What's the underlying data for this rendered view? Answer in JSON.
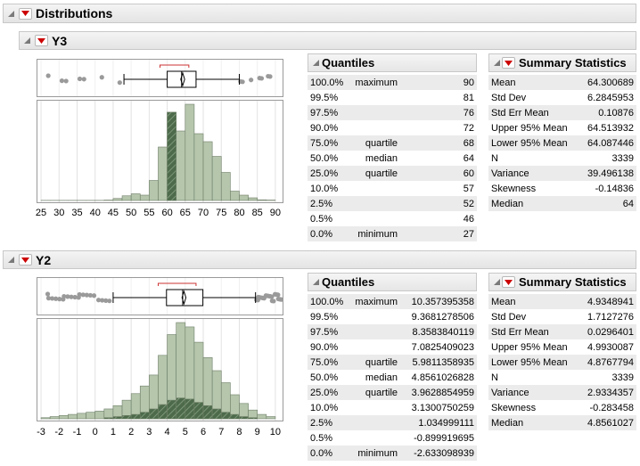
{
  "report": {
    "title": "Distributions"
  },
  "sections": [
    {
      "id": "y3",
      "title": "Y3",
      "quantiles_title": "Quantiles",
      "summary_title": "Summary Statistics",
      "quantiles": [
        {
          "pct": "100.0%",
          "label": "maximum",
          "value": "90"
        },
        {
          "pct": "99.5%",
          "label": "",
          "value": "81"
        },
        {
          "pct": "97.5%",
          "label": "",
          "value": "76"
        },
        {
          "pct": "90.0%",
          "label": "",
          "value": "72"
        },
        {
          "pct": "75.0%",
          "label": "quartile",
          "value": "68"
        },
        {
          "pct": "50.0%",
          "label": "median",
          "value": "64"
        },
        {
          "pct": "25.0%",
          "label": "quartile",
          "value": "60"
        },
        {
          "pct": "10.0%",
          "label": "",
          "value": "57"
        },
        {
          "pct": "2.5%",
          "label": "",
          "value": "52"
        },
        {
          "pct": "0.5%",
          "label": "",
          "value": "46"
        },
        {
          "pct": "0.0%",
          "label": "minimum",
          "value": "27"
        }
      ],
      "summary": [
        {
          "label": "Mean",
          "value": "64.300689"
        },
        {
          "label": "Std Dev",
          "value": "6.2845953"
        },
        {
          "label": "Std Err Mean",
          "value": "0.10876"
        },
        {
          "label": "Upper 95% Mean",
          "value": "64.513932"
        },
        {
          "label": "Lower 95% Mean",
          "value": "64.087446"
        },
        {
          "label": "N",
          "value": "3339"
        },
        {
          "label": "Variance",
          "value": "39.496138"
        },
        {
          "label": "Skewness",
          "value": "-0.14836"
        },
        {
          "label": "Median",
          "value": "64"
        }
      ],
      "axis_ticks": [
        "25",
        "30",
        "35",
        "40",
        "45",
        "50",
        "55",
        "60",
        "65",
        "70",
        "75",
        "80",
        "85",
        "90"
      ]
    },
    {
      "id": "y2",
      "title": "Y2",
      "quantiles_title": "Quantiles",
      "summary_title": "Summary Statistics",
      "quantiles": [
        {
          "pct": "100.0%",
          "label": "maximum",
          "value": "10.357395358"
        },
        {
          "pct": "99.5%",
          "label": "",
          "value": "9.3681278506"
        },
        {
          "pct": "97.5%",
          "label": "",
          "value": "8.3583840119"
        },
        {
          "pct": "90.0%",
          "label": "",
          "value": "7.0825409023"
        },
        {
          "pct": "75.0%",
          "label": "quartile",
          "value": "5.9811358935"
        },
        {
          "pct": "50.0%",
          "label": "median",
          "value": "4.8561026828"
        },
        {
          "pct": "25.0%",
          "label": "quartile",
          "value": "3.9628854959"
        },
        {
          "pct": "10.0%",
          "label": "",
          "value": "3.1300750259"
        },
        {
          "pct": "2.5%",
          "label": "",
          "value": "1.034999111"
        },
        {
          "pct": "0.5%",
          "label": "",
          "value": "-0.899919695"
        },
        {
          "pct": "0.0%",
          "label": "minimum",
          "value": "-2.633098939"
        }
      ],
      "summary": [
        {
          "label": "Mean",
          "value": "4.9348941"
        },
        {
          "label": "Std Dev",
          "value": "1.7127276"
        },
        {
          "label": "Std Err Mean",
          "value": "0.0296401"
        },
        {
          "label": "Upper 95% Mean",
          "value": "4.9930087"
        },
        {
          "label": "Lower 95% Mean",
          "value": "4.8767794"
        },
        {
          "label": "N",
          "value": "3339"
        },
        {
          "label": "Variance",
          "value": "2.9334357"
        },
        {
          "label": "Skewness",
          "value": "-0.283458"
        },
        {
          "label": "Median",
          "value": "4.8561027"
        }
      ],
      "axis_ticks": [
        "-3",
        "-2",
        "-1",
        "0",
        "1",
        "2",
        "3",
        "4",
        "5",
        "6",
        "7",
        "8",
        "9",
        "10"
      ]
    }
  ],
  "chart_data": [
    {
      "type": "bar",
      "series_label": "Y3",
      "x": [
        25,
        27.5,
        30,
        32.5,
        35,
        37.5,
        40,
        42.5,
        45,
        47.5,
        50,
        52.5,
        55,
        57.5,
        60,
        62.5,
        65,
        67.5,
        70,
        72.5,
        75,
        77.5,
        80,
        82.5,
        85,
        87.5
      ],
      "bin_width": 2.5,
      "values": [
        0.001,
        0.001,
        0.001,
        0.001,
        0.001,
        0.001,
        0.001,
        0.003,
        0.015,
        0.035,
        0.05,
        0.04,
        0.15,
        0.4,
        0.66,
        0.52,
        0.72,
        0.5,
        0.44,
        0.33,
        0.21,
        0.07,
        0.04,
        0.02,
        0.005,
        0.003
      ],
      "highlighted_values": [
        0,
        0,
        0,
        0,
        0,
        0,
        0,
        0,
        0,
        0,
        0,
        0,
        0,
        0,
        0.66,
        0,
        0,
        0,
        0,
        0,
        0,
        0,
        0,
        0,
        0,
        0
      ],
      "xlim": [
        24,
        92
      ],
      "box": {
        "min": 27,
        "q1": 60,
        "median": 64,
        "q3": 68,
        "max": 90,
        "whisker_low": 48,
        "whisker_high": 80,
        "mean": 64.3,
        "shortest_half": [
          58,
          66
        ]
      }
    },
    {
      "type": "bar",
      "series_label": "Y2",
      "x": [
        -3,
        -2.5,
        -2,
        -1.5,
        -1,
        -0.5,
        0,
        0.5,
        1,
        1.5,
        2,
        2.5,
        3,
        3.5,
        4,
        4.5,
        5,
        5.5,
        6,
        6.5,
        7,
        7.5,
        8,
        8.5,
        9,
        9.5
      ],
      "bin_width": 0.5,
      "values": [
        0.01,
        0.02,
        0.03,
        0.04,
        0.05,
        0.06,
        0.07,
        0.09,
        0.12,
        0.17,
        0.23,
        0.3,
        0.4,
        0.58,
        0.77,
        0.88,
        0.84,
        0.7,
        0.56,
        0.44,
        0.33,
        0.22,
        0.14,
        0.08,
        0.04,
        0.02
      ],
      "highlighted_values": [
        0,
        0,
        0,
        0,
        0,
        0,
        0,
        0.01,
        0.02,
        0.03,
        0.04,
        0.06,
        0.09,
        0.13,
        0.17,
        0.19,
        0.18,
        0.15,
        0.12,
        0.09,
        0.06,
        0.04,
        0.02,
        0.01,
        0,
        0
      ],
      "xlim": [
        -3.2,
        10.4
      ],
      "box": {
        "min": -2.63,
        "q1": 3.96,
        "median": 4.86,
        "q3": 5.98,
        "max": 10.36,
        "whisker_low": 1.0,
        "whisker_high": 8.9,
        "mean": 4.93,
        "shortest_half": [
          3.5,
          5.6
        ]
      }
    }
  ],
  "colors": {
    "bar_fill": "#b5c6ad",
    "bar_stroke": "#6f7f68",
    "bar_highlight": "#4d6b4a",
    "outlier": "#9a9a9a",
    "bracket": "#cc3333",
    "red_triangle": "#cc0000"
  },
  "icons": {
    "disclosure": "collapse-triangle-icon",
    "menu": "red-triangle-menu-icon"
  }
}
